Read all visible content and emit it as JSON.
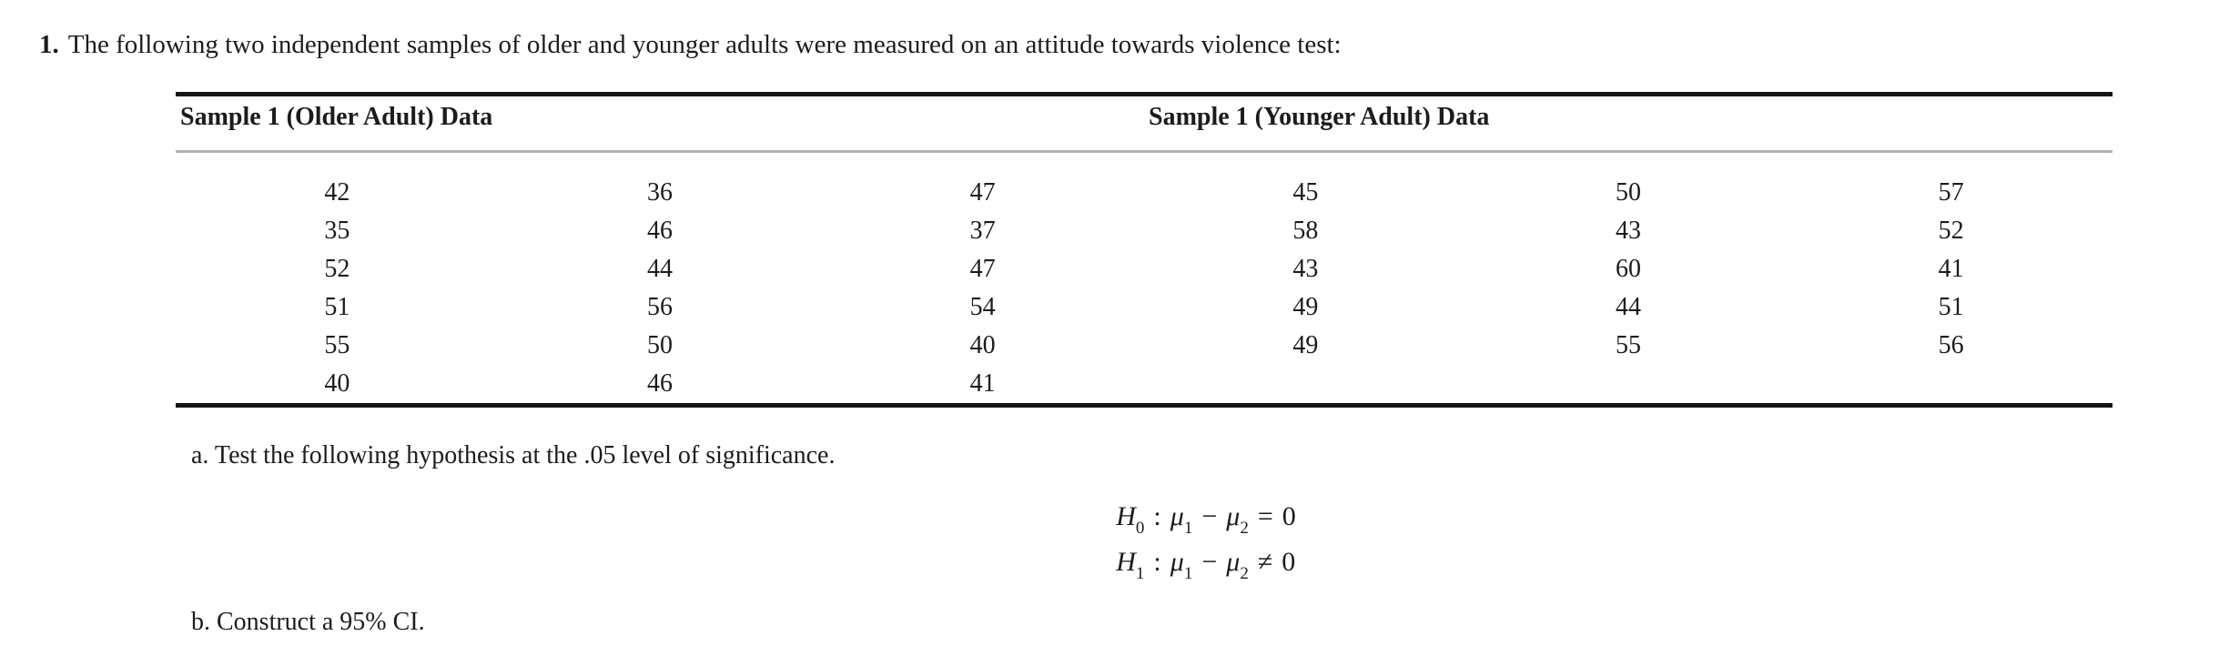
{
  "title": {
    "number": "1.",
    "text": "The following two independent samples of older and younger adults were measured on an attitude towards violence test:"
  },
  "table": {
    "header_left": "Sample 1 (Older Adult) Data",
    "header_right": "Sample 1 (Younger Adult) Data",
    "rows": [
      [
        "42",
        "36",
        "47",
        "45",
        "50",
        "57"
      ],
      [
        "35",
        "46",
        "37",
        "58",
        "43",
        "52"
      ],
      [
        "52",
        "44",
        "47",
        "43",
        "60",
        "41"
      ],
      [
        "51",
        "56",
        "54",
        "49",
        "44",
        "51"
      ],
      [
        "55",
        "50",
        "40",
        "49",
        "55",
        "56"
      ],
      [
        "40",
        "46",
        "41",
        "",
        "",
        ""
      ]
    ]
  },
  "questions": {
    "a": "a. Test the following hypothesis at the .05 level of significance.",
    "b": "b. Construct a 95% CI."
  },
  "hypotheses": {
    "h0": {
      "sym": "H",
      "sub": "0",
      "colon": ":",
      "mu1": "μ",
      "mu1_sub": "1",
      "minus": "−",
      "mu2": "μ",
      "mu2_sub": "2",
      "rel": "=",
      "rhs": "0"
    },
    "h1": {
      "sym": "H",
      "sub": "1",
      "colon": ":",
      "mu1": "μ",
      "mu1_sub": "1",
      "minus": "−",
      "mu2": "μ",
      "mu2_sub": "2",
      "rel": "≠",
      "rhs": "0"
    }
  },
  "colors": {
    "text": "#1c1c1e",
    "table_border": "#161616",
    "header_rule": "#b3b3b3",
    "background": "#ffffff"
  }
}
